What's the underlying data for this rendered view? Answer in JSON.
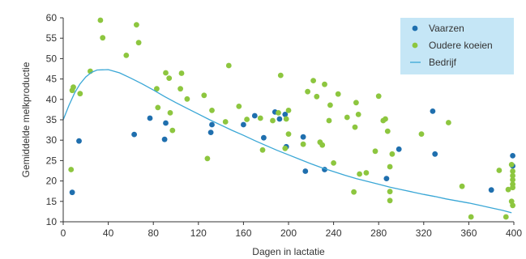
{
  "chart_data": {
    "type": "scatter",
    "xlabel": "Dagen in lactatie",
    "ylabel": "Gemiddelde melkproductie",
    "xlim": [
      0,
      400
    ],
    "ylim": [
      10,
      60
    ],
    "xticks": [
      0,
      40,
      80,
      120,
      160,
      200,
      240,
      280,
      320,
      360,
      400
    ],
    "yticks": [
      10,
      15,
      20,
      25,
      30,
      35,
      40,
      45,
      50,
      55,
      60
    ],
    "grid": "none",
    "legend_position": "top-right",
    "series": [
      {
        "name": "Vaarzen",
        "type": "scatter",
        "color": "#1f6fae",
        "points": [
          [
            8,
            17.2
          ],
          [
            14,
            29.8
          ],
          [
            63,
            31.4
          ],
          [
            77,
            35.4
          ],
          [
            90,
            30.2
          ],
          [
            91,
            34.2
          ],
          [
            132,
            33.8
          ],
          [
            131,
            31.9
          ],
          [
            160,
            33.8
          ],
          [
            170,
            36.0
          ],
          [
            178,
            30.6
          ],
          [
            188,
            36.9
          ],
          [
            192,
            35.2
          ],
          [
            197,
            36.3
          ],
          [
            198,
            28.4
          ],
          [
            213,
            30.8
          ],
          [
            215,
            22.4
          ],
          [
            232,
            22.8
          ],
          [
            287,
            20.6
          ],
          [
            298,
            27.8
          ],
          [
            328,
            37.1
          ],
          [
            330,
            26.6
          ],
          [
            380,
            17.8
          ],
          [
            399,
            26.2
          ],
          [
            399,
            23.7
          ]
        ]
      },
      {
        "name": "Oudere koeien",
        "type": "scatter",
        "color": "#8dc63f",
        "points": [
          [
            7,
            22.8
          ],
          [
            8,
            42.2
          ],
          [
            9,
            43.0
          ],
          [
            15,
            41.4
          ],
          [
            24,
            46.9
          ],
          [
            33,
            59.4
          ],
          [
            35,
            55.1
          ],
          [
            56,
            50.8
          ],
          [
            65,
            58.3
          ],
          [
            67,
            53.9
          ],
          [
            83,
            42.6
          ],
          [
            84,
            38.0
          ],
          [
            91,
            46.5
          ],
          [
            94,
            45.2
          ],
          [
            95,
            36.7
          ],
          [
            97,
            32.4
          ],
          [
            104,
            42.6
          ],
          [
            105,
            46.4
          ],
          [
            110,
            40.1
          ],
          [
            125,
            41.0
          ],
          [
            128,
            25.5
          ],
          [
            132,
            37.3
          ],
          [
            144,
            34.5
          ],
          [
            147,
            48.3
          ],
          [
            156,
            38.3
          ],
          [
            163,
            35.1
          ],
          [
            175,
            35.4
          ],
          [
            177,
            27.6
          ],
          [
            186,
            34.8
          ],
          [
            191,
            36.7
          ],
          [
            193,
            45.9
          ],
          [
            197,
            28.0
          ],
          [
            198,
            35.2
          ],
          [
            200,
            31.5
          ],
          [
            200,
            37.3
          ],
          [
            213,
            29.0
          ],
          [
            217,
            41.9
          ],
          [
            222,
            44.6
          ],
          [
            225,
            40.7
          ],
          [
            228,
            29.5
          ],
          [
            230,
            28.8
          ],
          [
            232,
            43.7
          ],
          [
            236,
            34.8
          ],
          [
            237,
            38.6
          ],
          [
            240,
            24.4
          ],
          [
            244,
            41.3
          ],
          [
            252,
            35.6
          ],
          [
            258,
            17.3
          ],
          [
            259,
            33.2
          ],
          [
            260,
            39.2
          ],
          [
            262,
            36.3
          ],
          [
            263,
            21.7
          ],
          [
            269,
            22.0
          ],
          [
            277,
            27.3
          ],
          [
            280,
            40.8
          ],
          [
            284,
            34.8
          ],
          [
            286,
            35.2
          ],
          [
            288,
            32.2
          ],
          [
            290,
            23.5
          ],
          [
            290,
            17.4
          ],
          [
            290,
            15.2
          ],
          [
            292,
            26.6
          ],
          [
            318,
            31.5
          ],
          [
            342,
            34.3
          ],
          [
            354,
            18.7
          ],
          [
            362,
            11.2
          ],
          [
            387,
            22.6
          ],
          [
            393,
            11.2
          ],
          [
            395,
            17.9
          ],
          [
            398,
            24.0
          ],
          [
            399,
            22.4
          ],
          [
            399,
            21.3
          ],
          [
            399,
            20.3
          ],
          [
            399,
            19.2
          ],
          [
            399,
            18.4
          ],
          [
            398,
            15.0
          ],
          [
            399,
            14.0
          ]
        ]
      },
      {
        "name": "Bedrijf",
        "type": "line",
        "color": "#3aa7d6",
        "points": [
          [
            0,
            35.0
          ],
          [
            5,
            38.5
          ],
          [
            10,
            41.5
          ],
          [
            15,
            43.8
          ],
          [
            20,
            45.5
          ],
          [
            25,
            46.6
          ],
          [
            30,
            47.2
          ],
          [
            40,
            47.3
          ],
          [
            50,
            46.5
          ],
          [
            60,
            45.2
          ],
          [
            70,
            43.8
          ],
          [
            80,
            42.3
          ],
          [
            90,
            40.7
          ],
          [
            100,
            39.2
          ],
          [
            110,
            37.8
          ],
          [
            120,
            36.4
          ],
          [
            130,
            35.0
          ],
          [
            140,
            33.7
          ],
          [
            150,
            32.4
          ],
          [
            160,
            31.2
          ],
          [
            170,
            29.9
          ],
          [
            180,
            28.7
          ],
          [
            190,
            27.5
          ],
          [
            200,
            26.4
          ],
          [
            210,
            25.3
          ],
          [
            220,
            24.2
          ],
          [
            230,
            23.2
          ],
          [
            240,
            22.3
          ],
          [
            250,
            21.4
          ],
          [
            260,
            20.6
          ],
          [
            270,
            19.9
          ],
          [
            280,
            19.2
          ],
          [
            290,
            18.5
          ],
          [
            300,
            17.9
          ],
          [
            310,
            17.3
          ],
          [
            320,
            16.7
          ],
          [
            330,
            16.2
          ],
          [
            340,
            15.6
          ],
          [
            350,
            15.1
          ],
          [
            360,
            14.6
          ],
          [
            370,
            14.0
          ],
          [
            380,
            13.4
          ],
          [
            390,
            12.8
          ],
          [
            398,
            12.2
          ]
        ]
      }
    ]
  },
  "colors": {
    "legend_background": "#c5e6f6",
    "axis": "#333333"
  }
}
